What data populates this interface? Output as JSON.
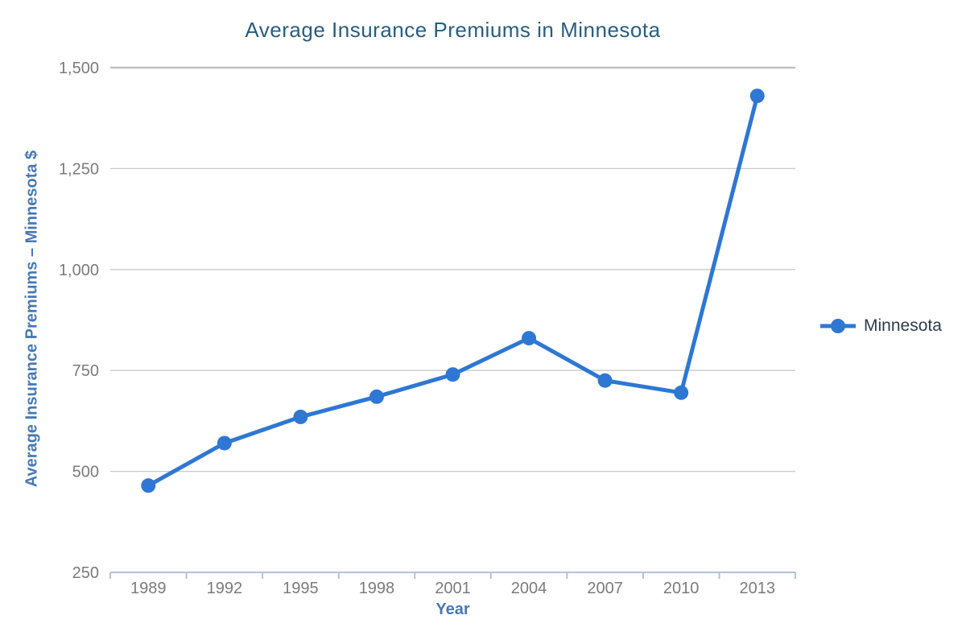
{
  "chart_data": {
    "type": "line",
    "title": "Average Insurance Premiums in Minnesota",
    "xlabel": "Year",
    "ylabel": "Average Insurance Premiums – Minnesota $",
    "categories": [
      "1989",
      "1992",
      "1995",
      "1998",
      "2001",
      "2004",
      "2007",
      "2010",
      "2013"
    ],
    "series": [
      {
        "name": "Minnesota",
        "values": [
          465,
          570,
          635,
          685,
          740,
          830,
          725,
          695,
          1430
        ],
        "color": "#2e77d2"
      }
    ],
    "ylim": [
      250,
      1500
    ],
    "yticks": [
      250,
      500,
      750,
      1000,
      1250,
      1500
    ],
    "ytick_labels": [
      "250",
      "500",
      "750",
      "1,000",
      "1,250",
      "1,500"
    ],
    "grid": true,
    "legend_position": "right",
    "colors": {
      "series": "#2e77d2",
      "title": "#2a5d7c",
      "axis_titles": "#4878b0",
      "tick_labels": "#7b7b7b",
      "gridline": "#c9c9c9",
      "top_gridline": "#bdbdbd",
      "axis_line": "#b3c3d7",
      "legend_text": "#2d3c4e",
      "background": "#ffffff"
    }
  }
}
